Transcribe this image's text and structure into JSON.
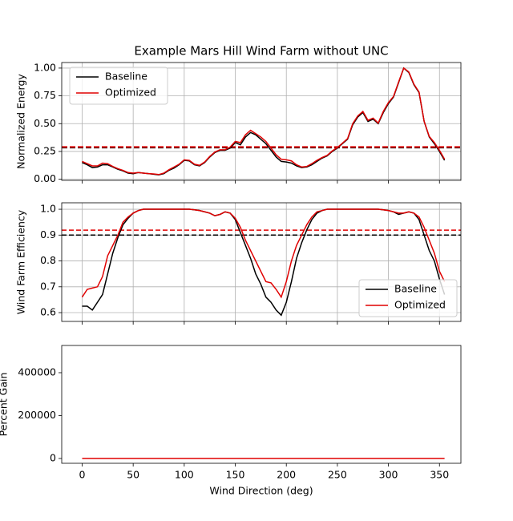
{
  "chart_data": [
    {
      "type": "line",
      "title": "Example Mars Hill Wind Farm without UNC",
      "ylabel": "Normalized Energy",
      "xlim": [
        -20,
        371
      ],
      "ylim": [
        -0.01,
        1.05
      ],
      "yticks": [
        {
          "value": 0,
          "label": "0.00"
        },
        0.25,
        {
          "value": 0.5,
          "label": "0.50"
        },
        0.75,
        {
          "value": 1,
          "label": "1.00"
        }
      ],
      "grid": true,
      "legend": "upper left",
      "x": [
        0,
        5,
        10,
        15,
        20,
        25,
        30,
        35,
        40,
        45,
        50,
        55,
        60,
        65,
        70,
        75,
        80,
        85,
        90,
        95,
        100,
        105,
        110,
        115,
        120,
        125,
        130,
        135,
        140,
        145,
        150,
        155,
        160,
        165,
        170,
        175,
        180,
        185,
        190,
        195,
        200,
        205,
        210,
        215,
        220,
        225,
        230,
        235,
        240,
        245,
        250,
        255,
        260,
        265,
        270,
        275,
        280,
        285,
        290,
        295,
        300,
        305,
        310,
        315,
        320,
        325,
        330,
        335,
        340,
        345,
        350,
        355
      ],
      "series": [
        {
          "name": "Baseline",
          "color": "#000000",
          "values": [
            0.15,
            0.13,
            0.105,
            0.11,
            0.13,
            0.13,
            0.11,
            0.09,
            0.075,
            0.055,
            0.05,
            0.06,
            0.055,
            0.05,
            0.045,
            0.04,
            0.05,
            0.08,
            0.1,
            0.13,
            0.17,
            0.165,
            0.13,
            0.12,
            0.15,
            0.2,
            0.24,
            0.26,
            0.26,
            0.28,
            0.33,
            0.31,
            0.38,
            0.42,
            0.4,
            0.36,
            0.32,
            0.26,
            0.2,
            0.16,
            0.155,
            0.145,
            0.12,
            0.105,
            0.11,
            0.13,
            0.16,
            0.19,
            0.21,
            0.25,
            0.28,
            0.32,
            0.36,
            0.49,
            0.56,
            0.6,
            0.52,
            0.54,
            0.5,
            0.6,
            0.68,
            0.74,
            0.87,
            1.0,
            0.96,
            0.85,
            0.78,
            0.52,
            0.38,
            0.32,
            0.25,
            0.17
          ]
        },
        {
          "name": "Optimized",
          "color": "#e00000",
          "values": [
            0.16,
            0.14,
            0.12,
            0.12,
            0.145,
            0.14,
            0.115,
            0.095,
            0.08,
            0.06,
            0.055,
            0.06,
            0.055,
            0.05,
            0.048,
            0.042,
            0.055,
            0.085,
            0.11,
            0.135,
            0.175,
            0.17,
            0.135,
            0.125,
            0.155,
            0.205,
            0.245,
            0.265,
            0.265,
            0.29,
            0.34,
            0.33,
            0.4,
            0.44,
            0.41,
            0.38,
            0.34,
            0.28,
            0.22,
            0.18,
            0.175,
            0.165,
            0.13,
            0.11,
            0.115,
            0.14,
            0.17,
            0.195,
            0.215,
            0.255,
            0.285,
            0.325,
            0.365,
            0.5,
            0.57,
            0.61,
            0.53,
            0.55,
            0.505,
            0.61,
            0.69,
            0.745,
            0.875,
            1.0,
            0.965,
            0.855,
            0.785,
            0.52,
            0.385,
            0.33,
            0.26,
            0.18
          ]
        }
      ],
      "mean_lines": [
        {
          "value": 0.285,
          "color": "#000000"
        },
        {
          "value": 0.29,
          "color": "#e00000"
        }
      ]
    },
    {
      "type": "line",
      "ylabel": "Wind Farm Efficiency",
      "xlim": [
        -20,
        371
      ],
      "ylim": [
        0.566,
        1.025
      ],
      "yticks": [
        0.6,
        0.7,
        0.8,
        0.9,
        {
          "value": 1,
          "label": "1.0"
        }
      ],
      "grid": true,
      "legend": "lower right",
      "x": [
        0,
        5,
        10,
        15,
        20,
        25,
        30,
        35,
        40,
        45,
        50,
        55,
        60,
        65,
        70,
        75,
        80,
        85,
        90,
        95,
        100,
        105,
        110,
        115,
        120,
        125,
        130,
        135,
        140,
        145,
        150,
        155,
        160,
        165,
        170,
        175,
        180,
        185,
        190,
        195,
        200,
        205,
        210,
        215,
        220,
        225,
        230,
        235,
        240,
        245,
        250,
        255,
        260,
        265,
        270,
        275,
        280,
        285,
        290,
        295,
        300,
        305,
        310,
        315,
        320,
        325,
        330,
        335,
        340,
        345,
        350,
        355
      ],
      "series": [
        {
          "name": "Baseline",
          "color": "#000000",
          "values": [
            0.625,
            0.625,
            0.61,
            0.64,
            0.67,
            0.75,
            0.83,
            0.89,
            0.94,
            0.965,
            0.985,
            0.995,
            1.0,
            1.0,
            1.0,
            1.0,
            1.0,
            1.0,
            1.0,
            1.0,
            1.0,
            1.0,
            0.998,
            0.995,
            0.99,
            0.985,
            0.975,
            0.98,
            0.99,
            0.985,
            0.96,
            0.91,
            0.86,
            0.81,
            0.75,
            0.71,
            0.66,
            0.64,
            0.61,
            0.59,
            0.64,
            0.72,
            0.81,
            0.87,
            0.92,
            0.96,
            0.985,
            0.995,
            1.0,
            1.0,
            1.0,
            1.0,
            1.0,
            1.0,
            1.0,
            1.0,
            1.0,
            1.0,
            1.0,
            0.998,
            0.995,
            0.99,
            0.98,
            0.985,
            0.99,
            0.985,
            0.96,
            0.9,
            0.84,
            0.8,
            0.73,
            0.67
          ]
        },
        {
          "name": "Optimized",
          "color": "#e00000",
          "values": [
            0.66,
            0.69,
            0.695,
            0.7,
            0.74,
            0.82,
            0.86,
            0.9,
            0.95,
            0.97,
            0.985,
            0.995,
            1.0,
            1.0,
            1.0,
            1.0,
            1.0,
            1.0,
            1.0,
            1.0,
            1.0,
            1.0,
            0.998,
            0.995,
            0.99,
            0.985,
            0.975,
            0.98,
            0.99,
            0.985,
            0.965,
            0.93,
            0.88,
            0.84,
            0.8,
            0.76,
            0.72,
            0.715,
            0.69,
            0.66,
            0.72,
            0.8,
            0.86,
            0.9,
            0.94,
            0.97,
            0.99,
            0.995,
            1.0,
            1.0,
            1.0,
            1.0,
            1.0,
            1.0,
            1.0,
            1.0,
            1.0,
            1.0,
            1.0,
            0.998,
            0.995,
            0.99,
            0.985,
            0.985,
            0.99,
            0.985,
            0.97,
            0.93,
            0.88,
            0.83,
            0.76,
            0.72
          ]
        }
      ],
      "mean_lines": [
        {
          "value": 0.9,
          "color": "#000000"
        },
        {
          "value": 0.919,
          "color": "#e00000"
        }
      ]
    },
    {
      "type": "line",
      "ylabel": "Percent Gain",
      "xlabel": "Wind Direction (deg)",
      "xlim": [
        -20,
        371
      ],
      "ylim": [
        -22400,
        527000
      ],
      "xticks": [
        0,
        50,
        100,
        150,
        200,
        250,
        300,
        350
      ],
      "yticks": [
        0,
        200000,
        400000
      ],
      "grid": false,
      "x": [
        0,
        5,
        10,
        15,
        20,
        25,
        30,
        35,
        40,
        45,
        50,
        55,
        60,
        65,
        70,
        75,
        80,
        85,
        90,
        95,
        100,
        105,
        110,
        115,
        120,
        125,
        130,
        135,
        140,
        145,
        150,
        155,
        160,
        165,
        170,
        175,
        180,
        185,
        190,
        195,
        200,
        205,
        210,
        215,
        220,
        225,
        230,
        235,
        240,
        245,
        250,
        255,
        260,
        265,
        270,
        275,
        280,
        285,
        290,
        295,
        300,
        305,
        310,
        315,
        320,
        325,
        330,
        335,
        340,
        345,
        350,
        355
      ],
      "series": [
        {
          "color": "#e00000",
          "values": [
            0,
            0,
            0,
            0,
            0,
            0,
            0,
            0,
            0,
            0,
            0,
            0,
            0,
            0,
            0,
            0,
            0,
            0,
            0,
            0,
            0,
            0,
            0,
            0,
            0,
            0,
            0,
            0,
            0,
            0,
            0,
            0,
            0,
            0,
            0,
            0,
            0,
            0,
            0,
            0,
            0,
            0,
            0,
            0,
            0,
            0,
            0,
            0,
            0,
            0,
            0,
            0,
            0,
            0,
            0,
            0,
            0,
            0,
            0,
            0,
            0,
            0,
            0,
            0,
            0,
            0,
            0,
            0,
            0,
            0,
            0,
            0
          ]
        }
      ]
    }
  ]
}
